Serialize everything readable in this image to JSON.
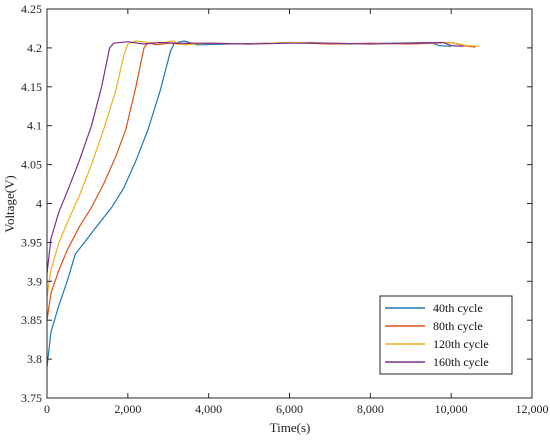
{
  "chart_data": {
    "type": "line",
    "title": "",
    "xlabel": "Time(s)",
    "ylabel": "Voltage(V)",
    "xlim": [
      0,
      12000
    ],
    "ylim": [
      3.75,
      4.25
    ],
    "xticks": [
      0,
      2000,
      4000,
      6000,
      8000,
      10000,
      12000
    ],
    "xtick_labels": [
      "0",
      "2,000",
      "4,000",
      "6,000",
      "8,000",
      "10,000",
      "12,000"
    ],
    "yticks": [
      3.75,
      3.8,
      3.85,
      3.9,
      3.95,
      4.0,
      4.05,
      4.1,
      4.15,
      4.2,
      4.25
    ],
    "ytick_labels": [
      "3.75",
      "3.8",
      "3.85",
      "3.9",
      "3.95",
      "4",
      "4.05",
      "4.1",
      "4.15",
      "4.2",
      "4.25"
    ],
    "grid": false,
    "legend_position": "bottom-right",
    "series": [
      {
        "name": "40th cycle",
        "color": "#1f77b4",
        "points": [
          [
            0,
            3.79
          ],
          [
            100,
            3.835
          ],
          [
            300,
            3.87
          ],
          [
            500,
            3.9
          ],
          [
            700,
            3.935
          ],
          [
            1000,
            3.955
          ],
          [
            1300,
            3.975
          ],
          [
            1600,
            3.995
          ],
          [
            1900,
            4.02
          ],
          [
            2200,
            4.055
          ],
          [
            2500,
            4.095
          ],
          [
            2800,
            4.145
          ],
          [
            3050,
            4.195
          ],
          [
            3150,
            4.206
          ],
          [
            3400,
            4.209
          ],
          [
            3700,
            4.204
          ],
          [
            4500,
            4.205
          ],
          [
            5500,
            4.206
          ],
          [
            6500,
            4.207
          ],
          [
            7500,
            4.205
          ],
          [
            8500,
            4.206
          ],
          [
            9500,
            4.207
          ],
          [
            9700,
            4.203
          ],
          [
            10000,
            4.202
          ]
        ]
      },
      {
        "name": "80th cycle",
        "color": "#d95319",
        "points": [
          [
            0,
            3.85
          ],
          [
            100,
            3.885
          ],
          [
            300,
            3.915
          ],
          [
            500,
            3.94
          ],
          [
            800,
            3.97
          ],
          [
            1100,
            3.995
          ],
          [
            1400,
            4.025
          ],
          [
            1700,
            4.06
          ],
          [
            1950,
            4.095
          ],
          [
            2200,
            4.15
          ],
          [
            2400,
            4.2
          ],
          [
            2500,
            4.207
          ],
          [
            2700,
            4.204
          ],
          [
            3000,
            4.206
          ],
          [
            3300,
            4.205
          ],
          [
            4000,
            4.206
          ],
          [
            5000,
            4.205
          ],
          [
            6000,
            4.207
          ],
          [
            7000,
            4.205
          ],
          [
            8000,
            4.206
          ],
          [
            9000,
            4.205
          ],
          [
            10000,
            4.207
          ],
          [
            10300,
            4.203
          ],
          [
            10600,
            4.201
          ]
        ]
      },
      {
        "name": "120th cycle",
        "color": "#edb120",
        "points": [
          [
            0,
            3.88
          ],
          [
            100,
            3.915
          ],
          [
            300,
            3.95
          ],
          [
            500,
            3.975
          ],
          [
            800,
            4.01
          ],
          [
            1100,
            4.05
          ],
          [
            1400,
            4.095
          ],
          [
            1700,
            4.145
          ],
          [
            1900,
            4.19
          ],
          [
            2000,
            4.205
          ],
          [
            2200,
            4.209
          ],
          [
            2500,
            4.207
          ],
          [
            2800,
            4.206
          ],
          [
            3100,
            4.209
          ],
          [
            3400,
            4.204
          ],
          [
            4000,
            4.206
          ],
          [
            5000,
            4.205
          ],
          [
            6000,
            4.207
          ],
          [
            7000,
            4.206
          ],
          [
            8000,
            4.205
          ],
          [
            9000,
            4.206
          ],
          [
            10000,
            4.207
          ],
          [
            10400,
            4.203
          ],
          [
            10700,
            4.202
          ]
        ]
      },
      {
        "name": "160th cycle",
        "color": "#7e2f8e",
        "points": [
          [
            0,
            3.91
          ],
          [
            100,
            3.955
          ],
          [
            300,
            3.99
          ],
          [
            500,
            4.015
          ],
          [
            800,
            4.055
          ],
          [
            1100,
            4.1
          ],
          [
            1350,
            4.15
          ],
          [
            1550,
            4.2
          ],
          [
            1650,
            4.206
          ],
          [
            2000,
            4.208
          ],
          [
            2400,
            4.205
          ],
          [
            2800,
            4.207
          ],
          [
            3200,
            4.206
          ],
          [
            4000,
            4.206
          ],
          [
            5000,
            4.205
          ],
          [
            6000,
            4.206
          ],
          [
            7000,
            4.206
          ],
          [
            8000,
            4.205
          ],
          [
            9000,
            4.206
          ],
          [
            9800,
            4.207
          ],
          [
            10000,
            4.203
          ],
          [
            10300,
            4.202
          ]
        ]
      }
    ]
  }
}
